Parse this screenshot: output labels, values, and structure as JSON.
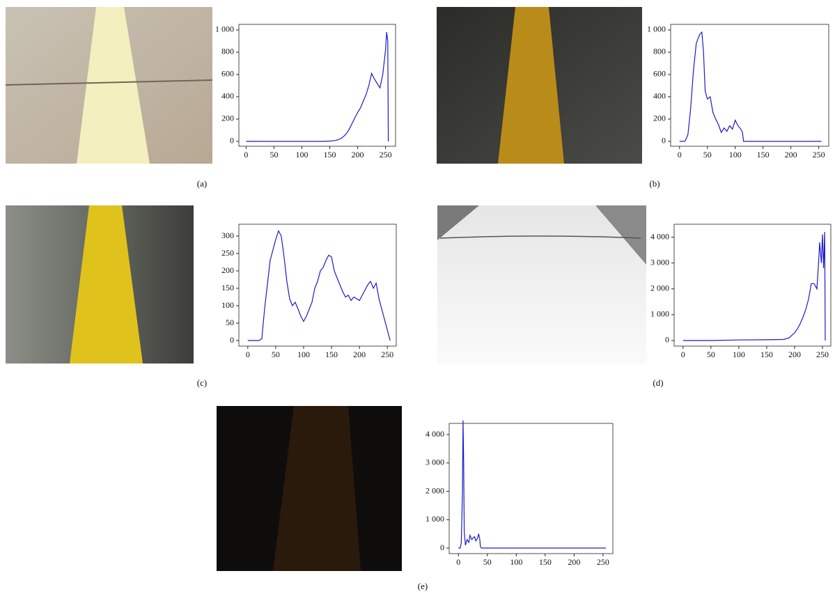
{
  "chart_data": [
    {
      "type": "line",
      "caption": "(a)",
      "color": "#1a1acc",
      "x": [
        0,
        20,
        40,
        60,
        80,
        100,
        120,
        140,
        150,
        160,
        165,
        170,
        175,
        180,
        185,
        190,
        195,
        200,
        205,
        210,
        215,
        220,
        225,
        230,
        235,
        240,
        245,
        250,
        252,
        254,
        255
      ],
      "values": [
        0,
        0,
        0,
        0,
        0,
        0,
        0,
        0,
        2,
        8,
        15,
        25,
        45,
        70,
        110,
        160,
        210,
        260,
        300,
        360,
        420,
        500,
        610,
        560,
        520,
        480,
        600,
        820,
        980,
        900,
        0
      ],
      "xlim": [
        -13,
        268
      ],
      "ylim": [
        -44,
        1050
      ],
      "xticks": [
        0,
        50,
        100,
        150,
        200,
        250
      ],
      "yticks": [
        0,
        200,
        400,
        600,
        800,
        {
          "value": 1000,
          "label": "1 000"
        }
      ]
    },
    {
      "type": "line",
      "caption": "(b)",
      "color": "#1a1acc",
      "x": [
        0,
        5,
        10,
        15,
        20,
        25,
        30,
        33,
        36,
        40,
        43,
        46,
        50,
        55,
        60,
        65,
        70,
        75,
        80,
        85,
        90,
        95,
        100,
        105,
        110,
        113,
        115,
        120,
        140,
        160,
        180,
        200,
        220,
        240,
        255
      ],
      "values": [
        0,
        0,
        2,
        60,
        300,
        640,
        880,
        920,
        960,
        980,
        800,
        450,
        380,
        400,
        260,
        200,
        150,
        80,
        120,
        90,
        140,
        110,
        190,
        140,
        110,
        80,
        0,
        0,
        0,
        0,
        0,
        0,
        0,
        0,
        0
      ],
      "xlim": [
        -16,
        268
      ],
      "ylim": [
        -44,
        1050
      ],
      "xticks": [
        0,
        50,
        100,
        150,
        200,
        250
      ],
      "yticks": [
        0,
        200,
        400,
        600,
        800,
        {
          "value": 1000,
          "label": "1 000"
        }
      ]
    },
    {
      "type": "line",
      "caption": "(c)",
      "color": "#1a1acc",
      "x": [
        0,
        10,
        20,
        25,
        30,
        35,
        40,
        45,
        50,
        55,
        60,
        65,
        70,
        75,
        80,
        85,
        90,
        95,
        100,
        105,
        110,
        115,
        120,
        125,
        130,
        135,
        140,
        145,
        150,
        155,
        160,
        165,
        170,
        175,
        180,
        185,
        190,
        195,
        200,
        205,
        210,
        215,
        220,
        225,
        230,
        235,
        240,
        245,
        250,
        255
      ],
      "values": [
        0,
        0,
        0,
        5,
        90,
        160,
        230,
        260,
        290,
        315,
        300,
        240,
        170,
        120,
        100,
        110,
        90,
        70,
        55,
        70,
        90,
        110,
        150,
        170,
        200,
        210,
        230,
        245,
        240,
        200,
        180,
        160,
        140,
        125,
        130,
        115,
        125,
        120,
        115,
        130,
        145,
        160,
        170,
        150,
        165,
        120,
        90,
        60,
        30,
        0
      ],
      "xlim": [
        -16,
        266
      ],
      "ylim": [
        -16,
        334
      ],
      "xticks": [
        0,
        50,
        100,
        150,
        200,
        250
      ],
      "yticks": [
        0,
        50,
        100,
        150,
        200,
        250,
        300
      ]
    },
    {
      "type": "line",
      "caption": "(d)",
      "color": "#1a1acc",
      "x": [
        0,
        50,
        100,
        150,
        180,
        190,
        200,
        205,
        210,
        215,
        220,
        225,
        230,
        235,
        240,
        243,
        245,
        248,
        250,
        252,
        254,
        255
      ],
      "values": [
        0,
        0,
        20,
        30,
        40,
        100,
        300,
        450,
        650,
        900,
        1200,
        1600,
        2200,
        2200,
        2000,
        3000,
        3800,
        3000,
        4100,
        2800,
        4200,
        0
      ],
      "xlim": [
        -16,
        265
      ],
      "ylim": [
        -216,
        4500
      ],
      "xticks": [
        0,
        50,
        100,
        150,
        200,
        250
      ],
      "yticks": [
        0,
        {
          "value": 1000,
          "label": "1 000"
        },
        {
          "value": 2000,
          "label": "2 000"
        },
        {
          "value": 3000,
          "label": "3 000"
        },
        {
          "value": 4000,
          "label": "4 000"
        }
      ]
    },
    {
      "type": "line",
      "caption": "(e)",
      "color": "#1a1acc",
      "x": [
        0,
        3,
        5,
        7,
        8,
        9,
        10,
        12,
        15,
        18,
        20,
        23,
        25,
        28,
        30,
        33,
        35,
        37,
        38,
        40,
        45,
        60,
        100,
        150,
        200,
        250,
        255
      ],
      "values": [
        0,
        0,
        200,
        2000,
        4500,
        3000,
        600,
        100,
        300,
        200,
        450,
        300,
        350,
        400,
        250,
        350,
        500,
        300,
        50,
        0,
        0,
        0,
        0,
        0,
        0,
        0,
        0
      ],
      "xlim": [
        -16,
        267
      ],
      "ylim": [
        -196,
        4393
      ],
      "xticks": [
        0,
        50,
        100,
        150,
        200,
        250
      ],
      "yticks": [
        0,
        {
          "value": 1000,
          "label": "1 000"
        },
        {
          "value": 2000,
          "label": "2 000"
        },
        {
          "value": 3000,
          "label": "3 000"
        },
        {
          "value": 4000,
          "label": "4 000"
        }
      ]
    }
  ]
}
